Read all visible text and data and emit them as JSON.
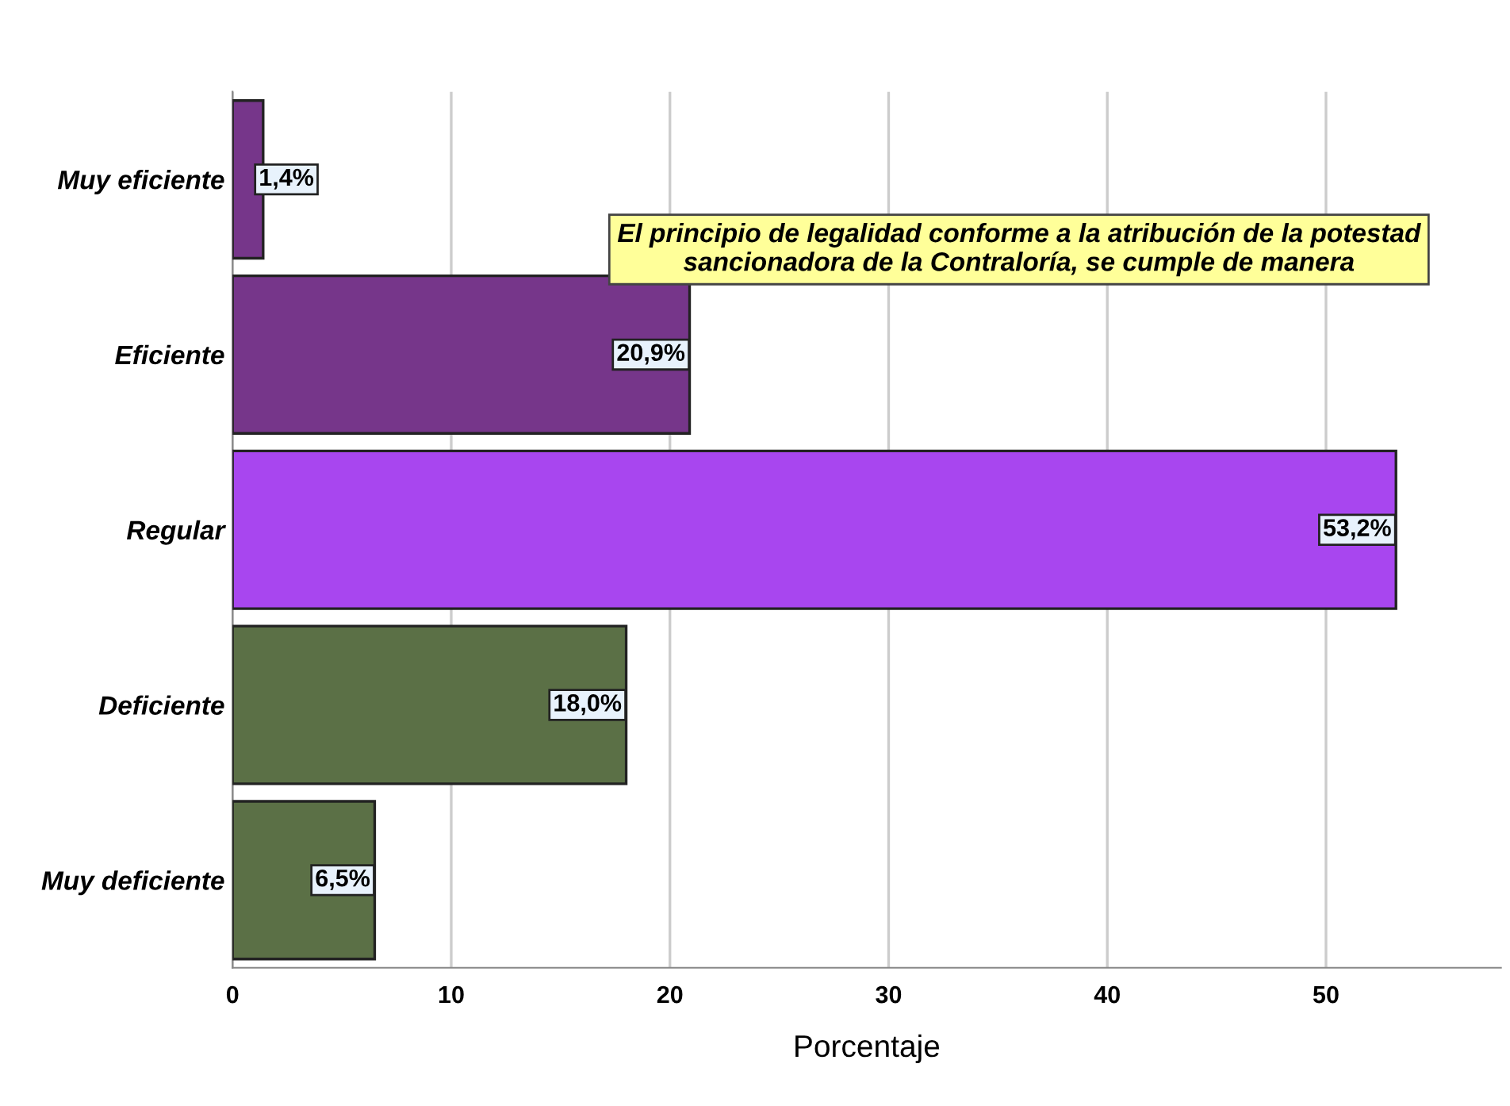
{
  "chart_data": {
    "type": "bar",
    "orientation": "horizontal",
    "title": "El principio de legalidad conforme a la atribución de la potestad sancionadora de la Contraloría, se cumple de manera",
    "xlabel": "Porcentaje",
    "categories": [
      "Muy eficiente",
      "Eficiente",
      "Regular",
      "Deficiente",
      "Muy deficiente"
    ],
    "values": [
      1.4,
      20.9,
      53.2,
      18.0,
      6.5
    ],
    "colors": [
      "#76368a",
      "#76368a",
      "#a846ef",
      "#5b7046",
      "#5b7046"
    ],
    "value_labels": [
      "1,4%",
      "20,9%",
      "53,2%",
      "18,0%",
      "6,5%"
    ],
    "xlim": [
      0,
      58
    ],
    "xticks": [
      0,
      10,
      20,
      30,
      40,
      50
    ],
    "grid": "x"
  }
}
